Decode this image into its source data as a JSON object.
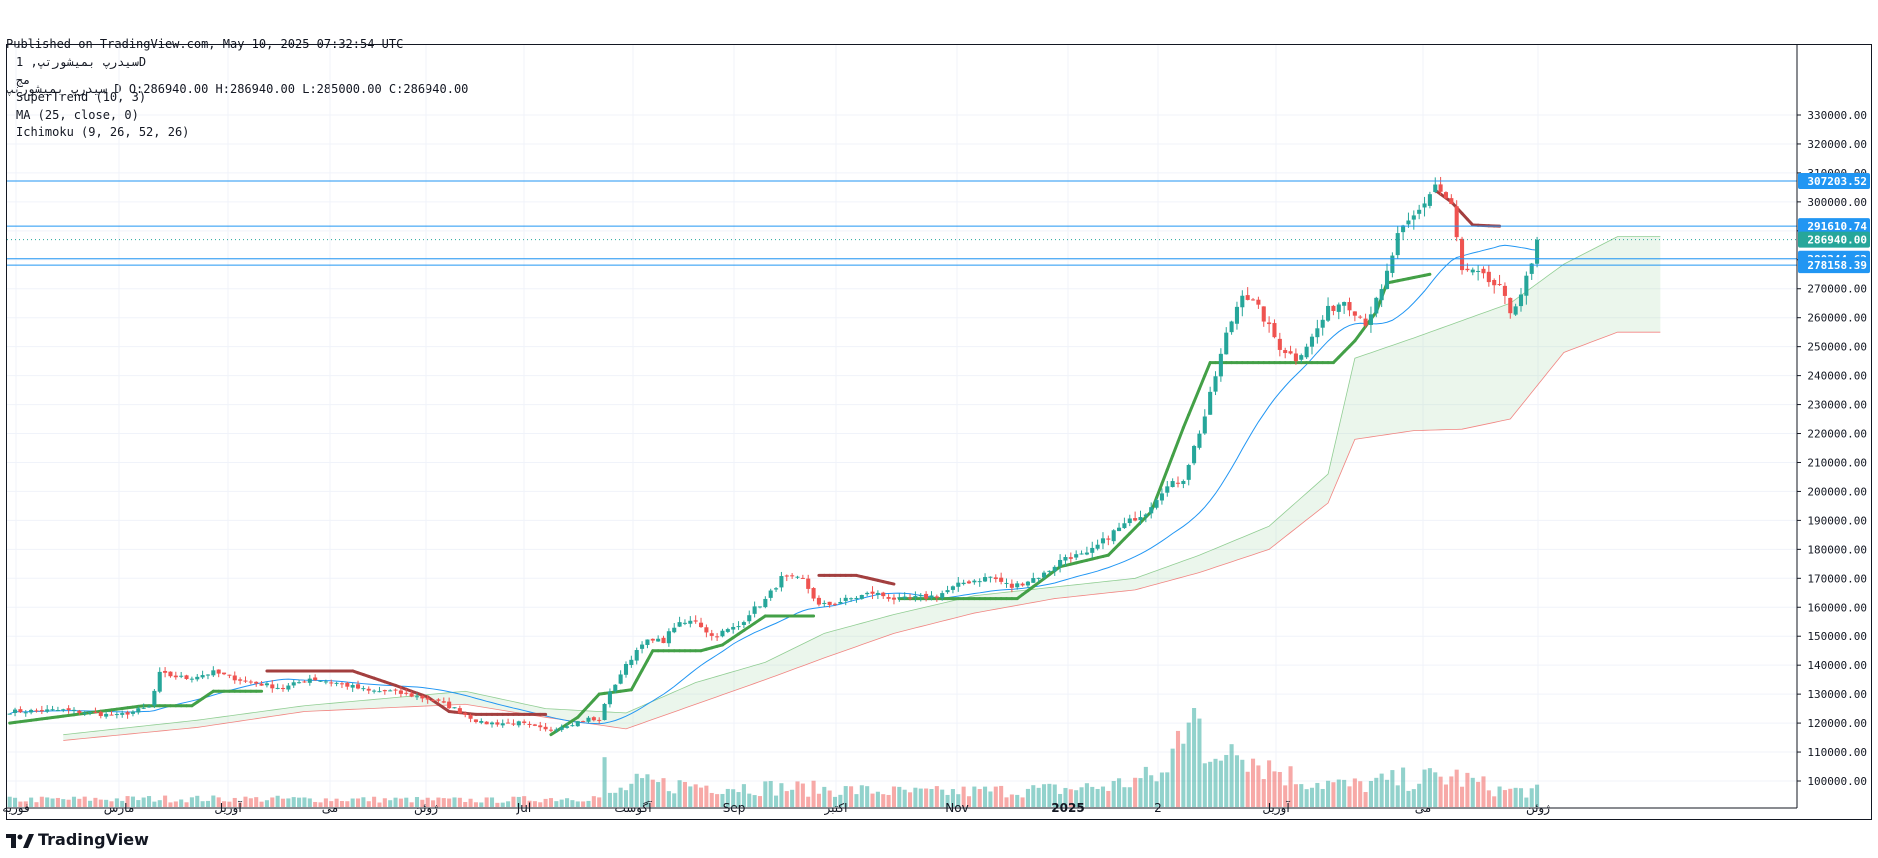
{
  "header": {
    "line1": "Published on TradingView.com, May 10, 2025 07:32:54 UTC",
    "line2": "سیدرپ بمیشورتپ D O:286940.00 H:286940.00 L:285000.00 C:286940.00"
  },
  "legend": {
    "symbol": "سیدرپ بمیشورتپ, 1D",
    "subtitle": "مج",
    "supertrend": "SuperTrend (10, 3)",
    "ma": "MA (25, close, 0)",
    "ichimoku": "Ichimoku (9, 26, 52, 26)"
  },
  "brand": {
    "name": "TradingView",
    "icon": "tradingview-logo-icon"
  },
  "colors": {
    "up": "#26a69a",
    "down": "#ef5350",
    "supertrend_up": "#43a047",
    "supertrend_down": "#a33f3f",
    "ma": "#2196f3",
    "kumo_bull": "#a5d6a7",
    "kumo_bear": "#ef9a9a",
    "hline": "#2196f3",
    "last_price": "#26a69a"
  },
  "chart_data": {
    "type": "candlestick",
    "timeframe": "1D",
    "ylim": [
      95000,
      335000
    ],
    "y_ticks": [
      "330000.00",
      "320000.00",
      "310000.00",
      "300000.00",
      "290000.00",
      "280000.00",
      "270000.00",
      "260000.00",
      "250000.00",
      "240000.00",
      "230000.00",
      "220000.00",
      "210000.00",
      "200000.00",
      "190000.00",
      "180000.00",
      "170000.00",
      "160000.00",
      "150000.00",
      "140000.00",
      "130000.00",
      "120000.00",
      "110000.00",
      "100000.00"
    ],
    "x_labels": [
      "فوریه",
      "مارس",
      "آوریل",
      "می",
      "ژوئن",
      "Jul",
      "آگوست",
      "Sep",
      "اکتبر",
      "Nov",
      "2025",
      "2",
      "آوریل",
      "می",
      "ژوئن"
    ],
    "bold_x_labels": [
      "2025"
    ],
    "num_bars": 308,
    "future_bars": 26,
    "horizontal_lines": [
      {
        "label": "307203.52",
        "value": 307203.52,
        "style": "solid",
        "color": "#2196f3"
      },
      {
        "label": "291610.74",
        "value": 291610.74,
        "style": "solid",
        "color": "#2196f3"
      },
      {
        "label": "286940.00",
        "value": 286940.0,
        "style": "dotted",
        "color": "#26a69a"
      },
      {
        "label": "280344.62",
        "value": 280344.62,
        "style": "solid",
        "color": "#2196f3"
      },
      {
        "label": "278158.39",
        "value": 278158.39,
        "style": "solid",
        "color": "#2196f3"
      }
    ],
    "close_anchors": [
      [
        0,
        124000
      ],
      [
        10,
        124500
      ],
      [
        20,
        122500
      ],
      [
        26,
        125500
      ],
      [
        27,
        131000
      ],
      [
        28,
        137000
      ],
      [
        33,
        135500
      ],
      [
        38,
        137500
      ],
      [
        44,
        134500
      ],
      [
        51,
        132000
      ],
      [
        56,
        135500
      ],
      [
        62,
        133500
      ],
      [
        67,
        131000
      ],
      [
        71,
        131000
      ],
      [
        79,
        128000
      ],
      [
        83,
        125000
      ],
      [
        88,
        120000
      ],
      [
        95,
        120000
      ],
      [
        100,
        117500
      ],
      [
        105,
        120000
      ],
      [
        108,
        121500
      ],
      [
        110,
        120500
      ],
      [
        111,
        127000
      ],
      [
        114,
        137000
      ],
      [
        118,
        148000
      ],
      [
        122,
        148500
      ],
      [
        124,
        153500
      ],
      [
        128,
        155500
      ],
      [
        131,
        150000
      ],
      [
        136,
        153500
      ],
      [
        138,
        158000
      ],
      [
        141,
        162500
      ],
      [
        144,
        170000
      ],
      [
        148,
        169500
      ],
      [
        151,
        160500
      ],
      [
        153,
        161000
      ],
      [
        158,
        163500
      ],
      [
        161,
        165000
      ],
      [
        166,
        162500
      ],
      [
        173,
        164000
      ],
      [
        178,
        168500
      ],
      [
        183,
        170500
      ],
      [
        187,
        167000
      ],
      [
        193,
        171500
      ],
      [
        197,
        177500
      ],
      [
        201,
        178000
      ],
      [
        206,
        186000
      ],
      [
        210,
        191000
      ],
      [
        212,
        193000
      ],
      [
        215,
        200500
      ],
      [
        219,
        204500
      ],
      [
        223,
        226000
      ],
      [
        227,
        254000
      ],
      [
        230,
        269000
      ],
      [
        233,
        263000
      ],
      [
        237,
        250000
      ],
      [
        240,
        246000
      ],
      [
        243,
        253000
      ],
      [
        246,
        262500
      ],
      [
        249,
        266000
      ],
      [
        253,
        258500
      ],
      [
        256,
        269000
      ],
      [
        259,
        288000
      ],
      [
        263,
        297000
      ],
      [
        266,
        306000
      ],
      [
        269,
        298500
      ],
      [
        271,
        276000
      ],
      [
        274,
        275000
      ],
      [
        278,
        270000
      ],
      [
        280,
        262000
      ],
      [
        282,
        268500
      ],
      [
        284,
        278000
      ],
      [
        285,
        286940
      ]
    ],
    "volume_anchors": [
      [
        0,
        2.8
      ],
      [
        30,
        3.2
      ],
      [
        60,
        3.0
      ],
      [
        90,
        2.6
      ],
      [
        105,
        3.5
      ],
      [
        110,
        3.8
      ],
      [
        111,
        15.0
      ],
      [
        112,
        4.5
      ],
      [
        117,
        9.0
      ],
      [
        126,
        8.5
      ],
      [
        150,
        7.0
      ],
      [
        170,
        5.5
      ],
      [
        196,
        6.8
      ],
      [
        205,
        8.0
      ],
      [
        213,
        11.5
      ],
      [
        216,
        12.5
      ],
      [
        219,
        35.0
      ],
      [
        220,
        44.0
      ],
      [
        221,
        58.0
      ],
      [
        222,
        40.0
      ],
      [
        223,
        15.0
      ],
      [
        224,
        13.0
      ],
      [
        229,
        30.0
      ],
      [
        232,
        19.0
      ],
      [
        240,
        11.0
      ],
      [
        250,
        8.0
      ],
      [
        260,
        10.5
      ],
      [
        270,
        11.5
      ],
      [
        278,
        6.5
      ],
      [
        285,
        6.0
      ]
    ],
    "supertrend_anchors": [
      [
        0,
        120000,
        "up"
      ],
      [
        25,
        126000,
        "up"
      ],
      [
        34,
        126000,
        "up"
      ],
      [
        38,
        131000,
        "up"
      ],
      [
        47,
        131000,
        "up"
      ],
      [
        48,
        138000,
        "down"
      ],
      [
        64,
        138000,
        "down"
      ],
      [
        72,
        133000,
        "down"
      ],
      [
        78,
        129000,
        "down"
      ],
      [
        82,
        124000,
        "down"
      ],
      [
        87,
        123000,
        "down"
      ],
      [
        100,
        123000,
        "down"
      ],
      [
        101,
        116000,
        "up"
      ],
      [
        106,
        122000,
        "up"
      ],
      [
        110,
        130000,
        "up"
      ],
      [
        116,
        131500,
        "up"
      ],
      [
        120,
        145000,
        "up"
      ],
      [
        125,
        145000,
        "up"
      ],
      [
        129,
        145000,
        "up"
      ],
      [
        133,
        147000,
        "up"
      ],
      [
        141,
        157000,
        "up"
      ],
      [
        150,
        157000,
        "up"
      ],
      [
        151,
        171000,
        "down"
      ],
      [
        158,
        171000,
        "down"
      ],
      [
        165,
        168000,
        "down"
      ],
      [
        166,
        163000,
        "up"
      ],
      [
        176,
        163000,
        "up"
      ],
      [
        188,
        163000,
        "up"
      ],
      [
        196,
        174000,
        "up"
      ],
      [
        205,
        178000,
        "up"
      ],
      [
        213,
        193000,
        "up"
      ],
      [
        219,
        222000,
        "up"
      ],
      [
        224,
        244500,
        "up"
      ],
      [
        233,
        244500,
        "up"
      ],
      [
        247,
        244500,
        "up"
      ],
      [
        251,
        252000,
        "up"
      ],
      [
        255,
        262000,
        "up"
      ],
      [
        257,
        272000,
        "up"
      ],
      [
        265,
        275000,
        "up"
      ],
      [
        266,
        304000,
        "down"
      ],
      [
        269,
        300000,
        "down"
      ],
      [
        273,
        292000,
        "down"
      ],
      [
        278,
        291610,
        "down"
      ]
    ],
    "kumo_span_a_anchors": [
      [
        10,
        116000
      ],
      [
        35,
        121000
      ],
      [
        55,
        126000
      ],
      [
        85,
        131000
      ],
      [
        100,
        125000
      ],
      [
        115,
        123500
      ],
      [
        128,
        134000
      ],
      [
        141,
        141000
      ],
      [
        152,
        151000
      ],
      [
        165,
        157500
      ],
      [
        180,
        164000
      ],
      [
        195,
        167000
      ],
      [
        210,
        170000
      ],
      [
        222,
        178000
      ],
      [
        235,
        188000
      ],
      [
        246,
        206000
      ],
      [
        251,
        246000
      ],
      [
        262,
        253000
      ],
      [
        271,
        259000
      ],
      [
        280,
        265000
      ],
      [
        290,
        278500
      ],
      [
        300,
        288000
      ],
      [
        308,
        288000
      ]
    ],
    "kumo_span_b_anchors": [
      [
        10,
        114000
      ],
      [
        35,
        118500
      ],
      [
        55,
        124000
      ],
      [
        85,
        126500
      ],
      [
        100,
        122000
      ],
      [
        115,
        118000
      ],
      [
        128,
        126500
      ],
      [
        141,
        135000
      ],
      [
        152,
        142500
      ],
      [
        165,
        151000
      ],
      [
        180,
        158000
      ],
      [
        195,
        163000
      ],
      [
        210,
        166000
      ],
      [
        222,
        172000
      ],
      [
        235,
        180000
      ],
      [
        246,
        196000
      ],
      [
        251,
        218000
      ],
      [
        262,
        221000
      ],
      [
        271,
        221500
      ],
      [
        280,
        225000
      ],
      [
        290,
        248000
      ],
      [
        300,
        255000
      ],
      [
        308,
        255000
      ]
    ]
  }
}
